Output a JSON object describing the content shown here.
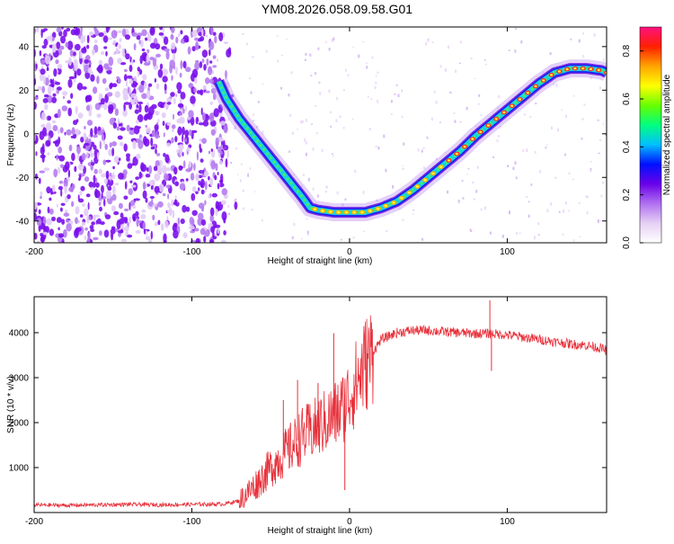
{
  "title": "YM08.2026.058.09.58.G01",
  "chart_data": [
    {
      "type": "heatmap",
      "xlabel": "Height of straight line (km)",
      "ylabel": "Frequency (Hz)",
      "xlim": [
        -200,
        163
      ],
      "ylim": [
        -50,
        49
      ],
      "xticks": [
        -200,
        -100,
        0,
        100
      ],
      "xtick_labels": [
        "-200",
        "-100",
        "0",
        "100"
      ],
      "yticks": [
        40,
        20,
        0,
        -20,
        -40
      ],
      "ytick_labels": [
        "40",
        "20",
        "0",
        "-20",
        "-40"
      ],
      "noise_region_x": [
        -200,
        -78
      ],
      "ridge": {
        "x": [
          -83,
          -78,
          -70,
          -60,
          -50,
          -40,
          -30,
          -25,
          -20,
          -10,
          0,
          10,
          20,
          30,
          40,
          50,
          60,
          70,
          80,
          90,
          100,
          110,
          120,
          130,
          140,
          150,
          160,
          163
        ],
        "y": [
          24,
          16,
          7,
          -2,
          -11,
          -20,
          -29,
          -34,
          -35,
          -36,
          -36,
          -36,
          -34,
          -31,
          -26,
          -20,
          -14,
          -8,
          -1,
          5,
          11,
          17,
          23,
          28,
          30,
          30,
          29,
          28
        ],
        "peak_amplitude": 0.9
      },
      "colorbar": {
        "label": "Normalized spectral amplitude",
        "range": [
          0.0,
          0.9
        ],
        "ticks": [
          0.0,
          0.2,
          0.4,
          0.6,
          0.8
        ],
        "tick_labels": [
          "0.0",
          "0.2",
          "0.4",
          "0.6",
          "0.8"
        ],
        "colormap": [
          "#ffffff",
          "#e6d0f5",
          "#b070f0",
          "#6a00e8",
          "#0010ff",
          "#00bfff",
          "#00ff80",
          "#66ff00",
          "#ffff00",
          "#ffa500",
          "#ff2000",
          "#ff1080"
        ]
      },
      "grid": false
    },
    {
      "type": "line",
      "xlabel": "Height of straight line (km)",
      "ylabel": "SNR (10 * v/v)",
      "xlim": [
        -200,
        163
      ],
      "ylim": [
        0,
        4800
      ],
      "xticks": [
        -200,
        -100,
        0,
        100
      ],
      "xtick_labels": [
        "-200",
        "-100",
        "0",
        "100"
      ],
      "yticks": [
        1000,
        2000,
        3000,
        4000
      ],
      "ytick_labels": [
        "1000",
        "2000",
        "3000",
        "4000"
      ],
      "color": "#e8303a",
      "grid": false,
      "envelope": {
        "x": [
          -200,
          -180,
          -160,
          -140,
          -120,
          -100,
          -80,
          -70,
          -60,
          -50,
          -40,
          -30,
          -20,
          -10,
          -5,
          0,
          10,
          20,
          30,
          40,
          50,
          60,
          70,
          80,
          90,
          100,
          110,
          120,
          130,
          140,
          150,
          160,
          163
        ],
        "y": [
          170,
          160,
          170,
          180,
          170,
          180,
          190,
          260,
          600,
          1000,
          1350,
          1700,
          1900,
          2150,
          2300,
          2600,
          3300,
          3850,
          4000,
          4050,
          4050,
          4020,
          4000,
          3980,
          3980,
          3950,
          3900,
          3850,
          3800,
          3750,
          3720,
          3650,
          3600
        ]
      },
      "spikes": [
        {
          "x": -42,
          "y": 2500
        },
        {
          "x": -33,
          "y": 2950
        },
        {
          "x": -20,
          "y": 2880
        },
        {
          "x": -10,
          "y": 3990
        },
        {
          "x": -3,
          "y": 500
        },
        {
          "x": 89,
          "y": 4720
        },
        {
          "x": 90,
          "y": 3150
        }
      ]
    }
  ]
}
